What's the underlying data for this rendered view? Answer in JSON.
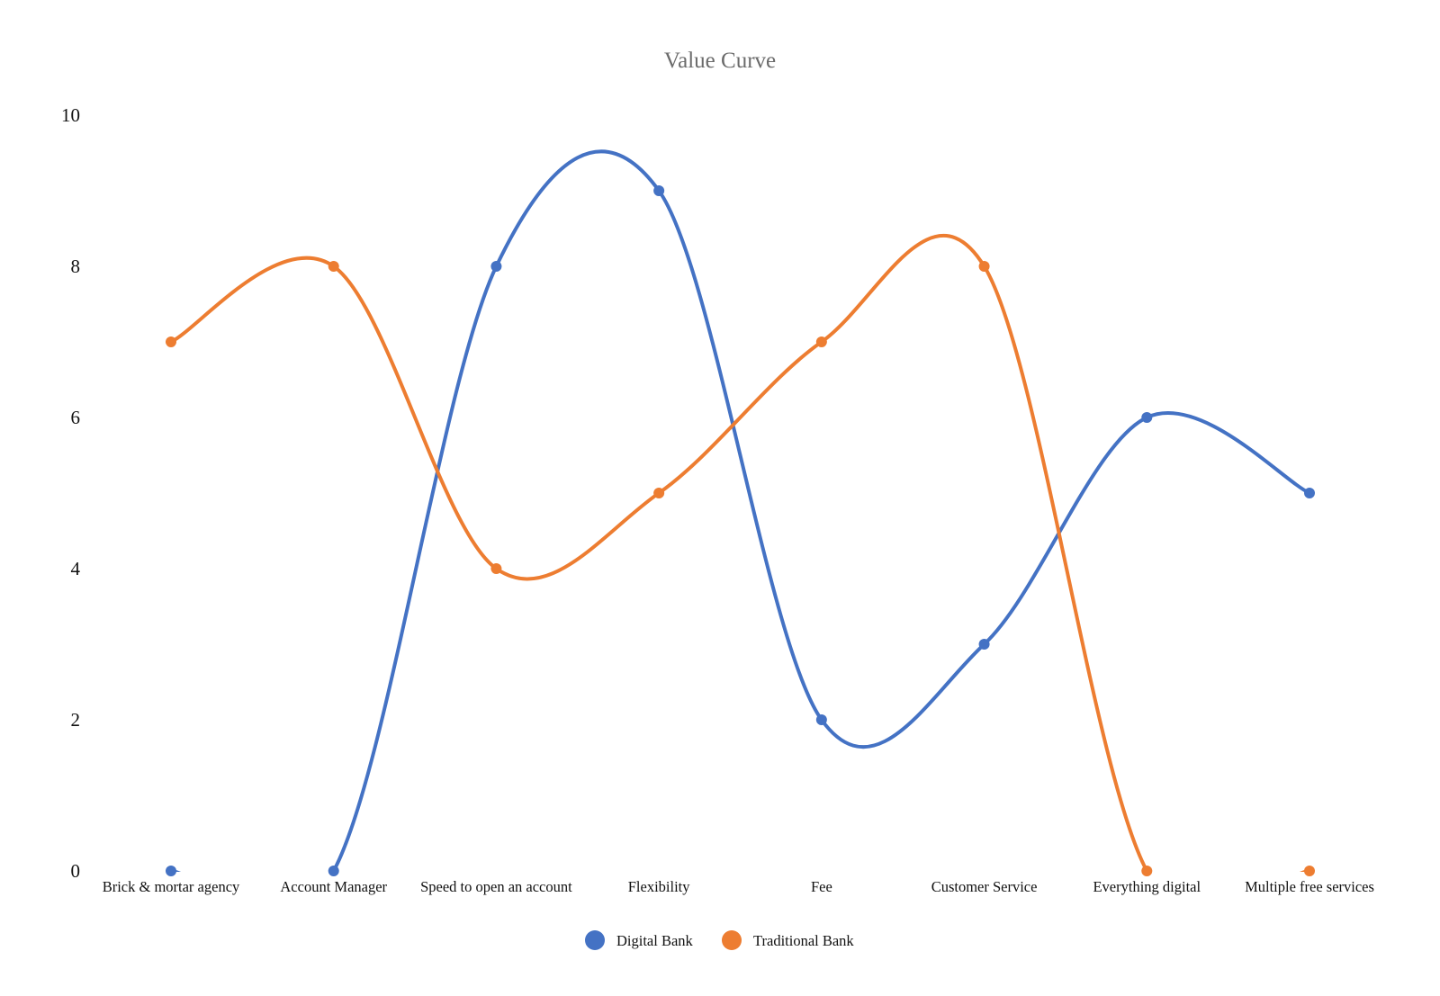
{
  "chart_data": {
    "type": "line",
    "smooth": true,
    "title": "Value Curve",
    "xlabel": "",
    "ylabel": "",
    "categories": [
      "Brick & mortar agency",
      "Account Manager",
      "Speed to open an account",
      "Flexibility",
      "Fee",
      "Customer Service",
      "Everything digital",
      "Multiple free services"
    ],
    "series": [
      {
        "name": "Digital Bank",
        "color": "#4472C4",
        "values": [
          0,
          0,
          8,
          9,
          2,
          3,
          6,
          5
        ]
      },
      {
        "name": "Traditional Bank",
        "color": "#ED7D31",
        "values": [
          7,
          8,
          4,
          5,
          7,
          8,
          0,
          0
        ]
      }
    ],
    "ylim": [
      0,
      10
    ],
    "yticks": [
      "0",
      "2",
      "4",
      "6",
      "8",
      "10"
    ],
    "grid": false,
    "legend_position": "bottom-center"
  }
}
